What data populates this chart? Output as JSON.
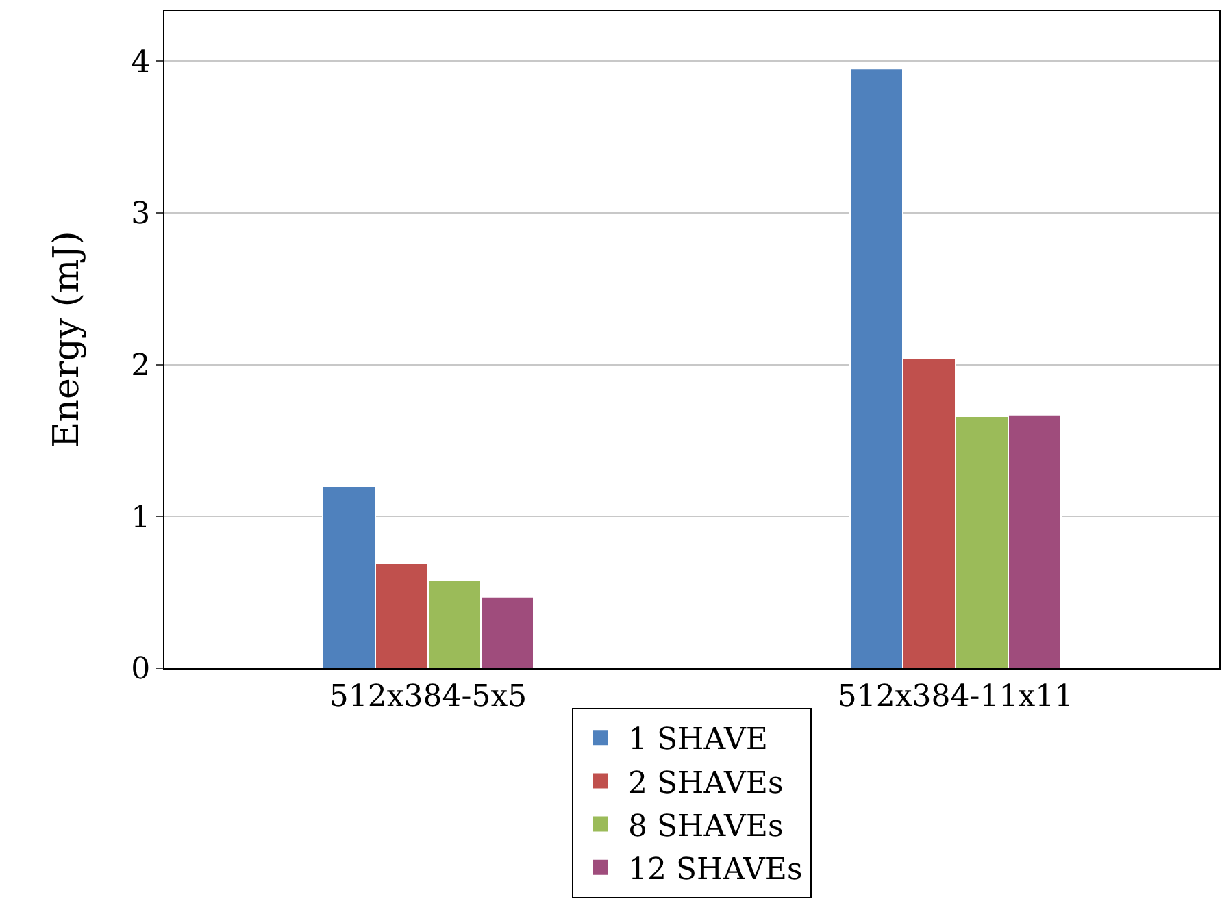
{
  "chart_data": {
    "type": "bar",
    "ylabel": "Energy (mJ)",
    "categories": [
      "512x384-5x5",
      "512x384-11x11"
    ],
    "series": [
      {
        "name": "1 SHAVE",
        "color": "#4f81bd",
        "values": [
          1.2,
          3.95
        ]
      },
      {
        "name": "2 SHAVEs",
        "color": "#c0504d",
        "values": [
          0.69,
          2.04
        ]
      },
      {
        "name": "8 SHAVEs",
        "color": "#9bbb59",
        "values": [
          0.58,
          1.66
        ]
      },
      {
        "name": "12 SHAVEs",
        "color": "#9f4c7c",
        "values": [
          0.47,
          1.67
        ]
      }
    ],
    "ylim": [
      0,
      4.33
    ],
    "yticks": [
      0,
      1,
      2,
      3,
      4
    ],
    "grid": "y",
    "legend": "bottom"
  }
}
